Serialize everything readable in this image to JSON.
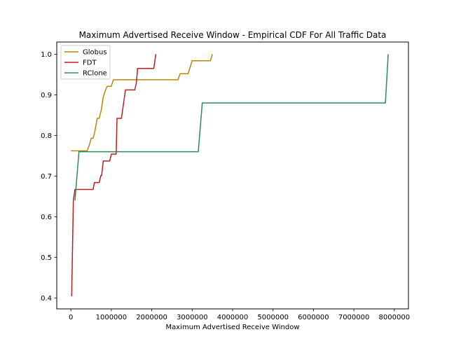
{
  "chart_data": {
    "type": "line",
    "title": "Maximum Advertised Receive Window - Empirical CDF For All Traffic Data",
    "xlabel": "Maximum Advertised Receive Window",
    "ylabel": "",
    "xlim": [
      -350000,
      8350000
    ],
    "ylim": [
      0.373,
      1.03
    ],
    "xticks": [
      0,
      1000000,
      2000000,
      3000000,
      4000000,
      5000000,
      6000000,
      7000000,
      8000000
    ],
    "xtick_labels": [
      "0",
      "1000000",
      "2000000",
      "3000000",
      "4000000",
      "5000000",
      "6000000",
      "7000000",
      "8000000"
    ],
    "yticks": [
      0.4,
      0.5,
      0.6,
      0.7,
      0.8,
      0.9,
      1.0
    ],
    "ytick_labels": [
      "0.4",
      "0.5",
      "0.6",
      "0.7",
      "0.8",
      "0.9",
      "1.0"
    ],
    "grid": false,
    "legend_position": "top-left",
    "series": [
      {
        "name": "Globus",
        "color": "#b8860b",
        "x": [
          0,
          400000,
          450000,
          480000,
          500000,
          550000,
          580000,
          620000,
          650000,
          700000,
          720000,
          750000,
          800000,
          850000,
          900000,
          950000,
          1000000,
          1050000,
          1100000,
          2000000,
          2650000,
          2700000,
          2750000,
          2900000,
          2950000,
          3000000,
          3450000,
          3500000
        ],
        "y": [
          0.762,
          0.762,
          0.775,
          0.785,
          0.793,
          0.793,
          0.805,
          0.825,
          0.842,
          0.842,
          0.85,
          0.862,
          0.895,
          0.91,
          0.921,
          0.921,
          0.921,
          0.937,
          0.937,
          0.937,
          0.937,
          0.952,
          0.952,
          0.952,
          0.968,
          0.984,
          0.984,
          1.0
        ]
      },
      {
        "name": "FDT",
        "color": "#b22222",
        "x": [
          20000,
          60000,
          100000,
          550000,
          580000,
          620000,
          700000,
          740000,
          760000,
          800000,
          960000,
          1000000,
          1080000,
          1120000,
          1140000,
          1250000,
          1300000,
          1350000,
          1580000,
          1620000,
          1650000,
          1700000,
          2050000,
          2100000
        ],
        "y": [
          0.404,
          0.64,
          0.667,
          0.667,
          0.684,
          0.684,
          0.684,
          0.701,
          0.701,
          0.737,
          0.737,
          0.754,
          0.754,
          0.754,
          0.842,
          0.842,
          0.877,
          0.912,
          0.912,
          0.93,
          0.965,
          0.965,
          0.965,
          1.0
        ]
      },
      {
        "name": "RClone",
        "color": "#2e8b57",
        "x": [
          100000,
          200000,
          3000000,
          3150000,
          3250000,
          7700000,
          7780000,
          7850000
        ],
        "y": [
          0.64,
          0.76,
          0.76,
          0.76,
          0.88,
          0.88,
          0.88,
          1.0
        ]
      }
    ]
  }
}
